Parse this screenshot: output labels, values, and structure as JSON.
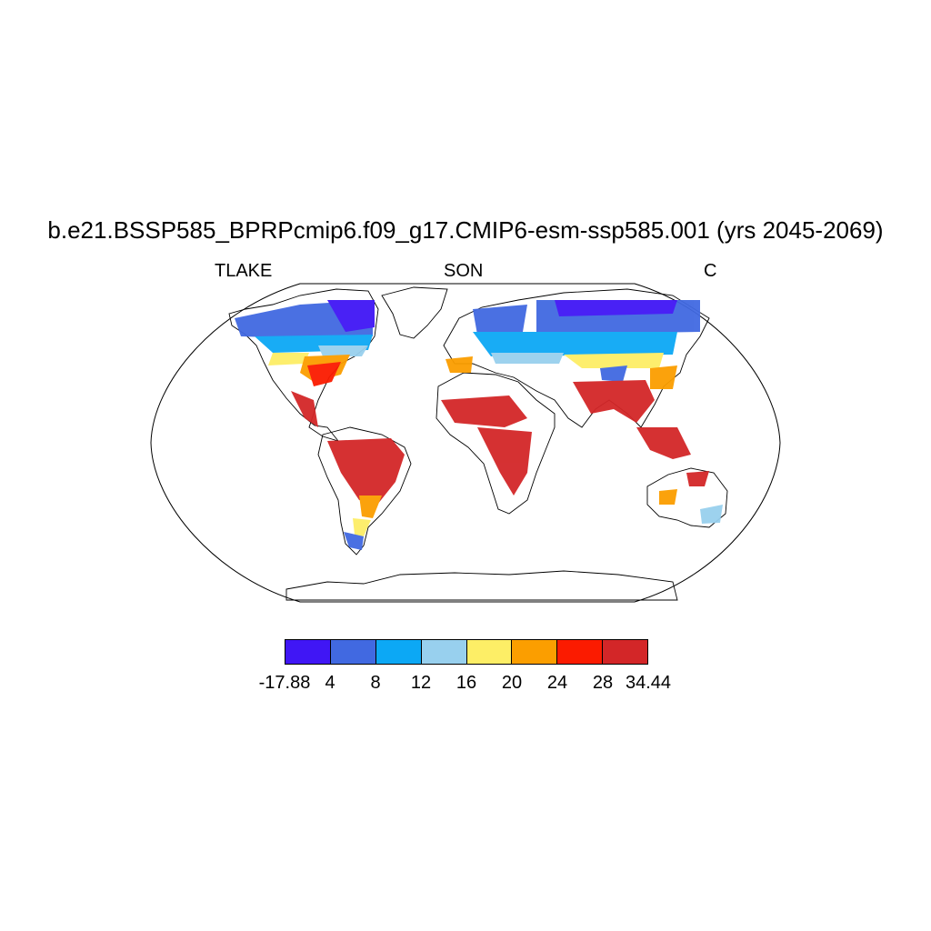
{
  "title": "b.e21.BSSP585_BPRPcmip6.f09_g17.CMIP6-esm-ssp585.001 (yrs 2045-2069)",
  "left_label": "TLAKE",
  "center_label": "SON",
  "right_label": "C",
  "projection": "Robinson",
  "colorbar": {
    "colors": [
      "#4016f5",
      "#4169e1",
      "#0ca8f5",
      "#98d0ee",
      "#fdee66",
      "#fb9e00",
      "#fb1b00",
      "#d32628"
    ],
    "labels": [
      "-17.88",
      "4",
      "8",
      "12",
      "16",
      "20",
      "24",
      "28",
      "34.44"
    ]
  }
}
